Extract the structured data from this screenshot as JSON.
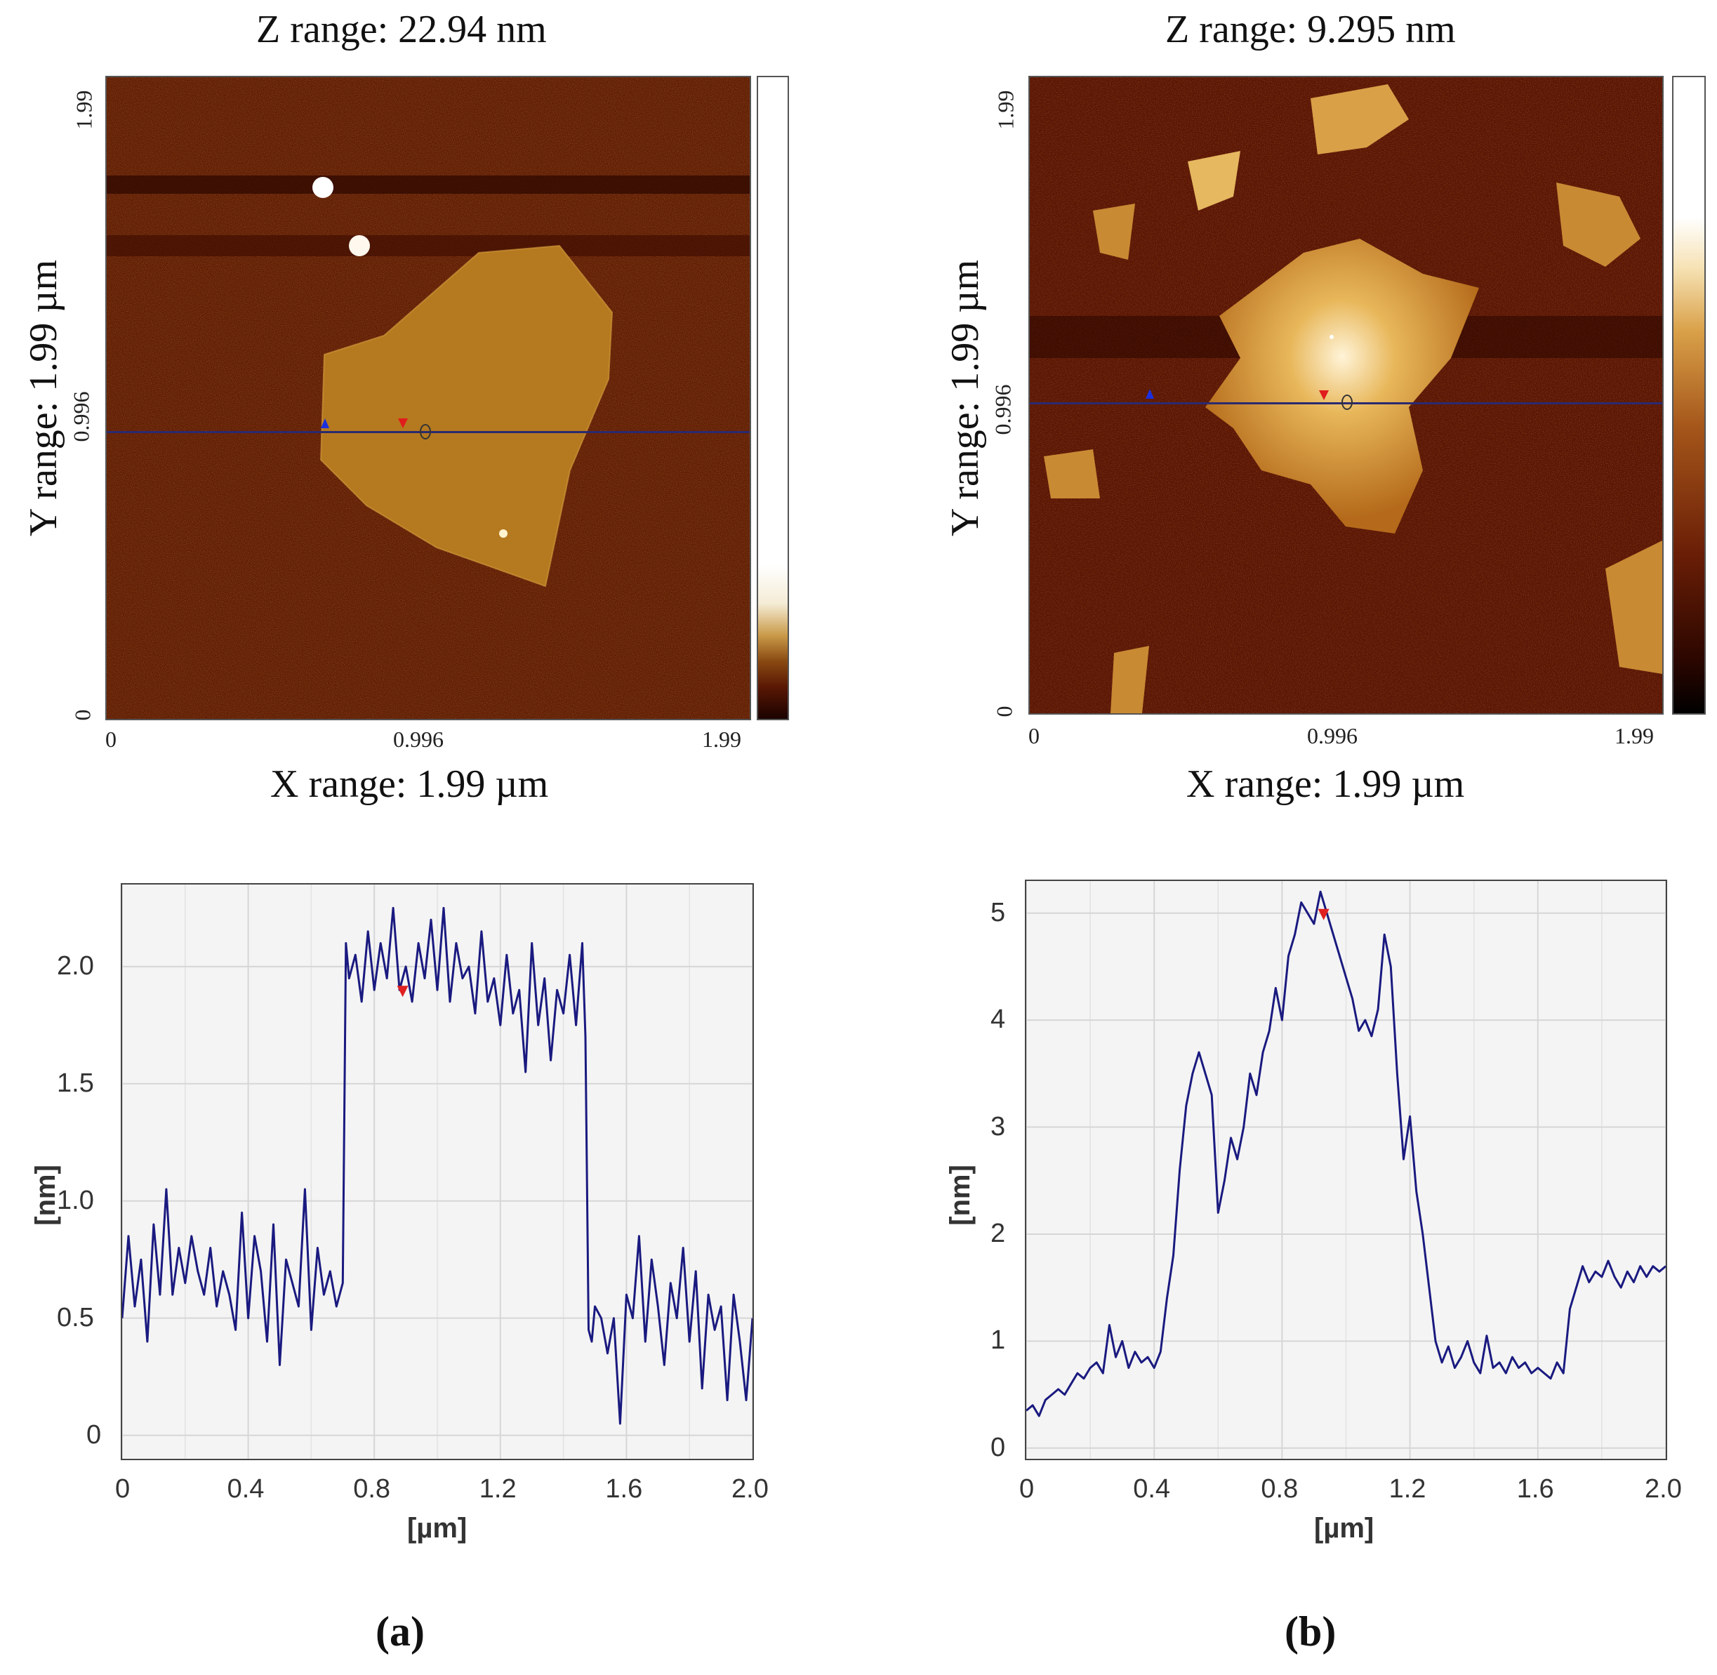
{
  "left": {
    "z_range": "Z range: 22.94 nm",
    "x_range": "X range: 1.99 µm",
    "y_range": "Y range: 1.99 µm",
    "x_ticks": [
      "0",
      "0.996",
      "1.99"
    ],
    "y_ticks": [
      "0",
      "0.996",
      "1.99"
    ],
    "panel_label": "(a)"
  },
  "right": {
    "z_range": "Z range: 9.295 nm",
    "x_range": "X range: 1.99 µm",
    "y_range": "Y range: 1.99 µm",
    "x_ticks": [
      "0",
      "0.996",
      "1.99"
    ],
    "y_ticks": [
      "0",
      "0.996",
      "1.99"
    ],
    "panel_label": "(b)"
  },
  "colors": {
    "map_dark": "#3a0a00",
    "map_mid": "#7a2a06",
    "map_flake": "#c58a2a",
    "line": "#1a1a80",
    "scan_line": "#2a2a70"
  },
  "chart_data": [
    {
      "type": "line",
      "panel": "a",
      "xlabel": "[µm]",
      "ylabel": "[nm]",
      "xlim": [
        0,
        2.0
      ],
      "ylim": [
        -0.1,
        2.35
      ],
      "xticks": [
        "0",
        "0.4",
        "0.8",
        "1.2",
        "1.6",
        "2.0"
      ],
      "yticks": [
        "0",
        "0.5",
        "1.0",
        "1.5",
        "2.0"
      ],
      "x": [
        0.0,
        0.02,
        0.04,
        0.06,
        0.08,
        0.1,
        0.12,
        0.14,
        0.16,
        0.18,
        0.2,
        0.22,
        0.24,
        0.26,
        0.28,
        0.3,
        0.32,
        0.34,
        0.36,
        0.38,
        0.4,
        0.42,
        0.44,
        0.46,
        0.48,
        0.5,
        0.52,
        0.54,
        0.56,
        0.58,
        0.6,
        0.62,
        0.64,
        0.66,
        0.68,
        0.7,
        0.71,
        0.72,
        0.74,
        0.76,
        0.78,
        0.8,
        0.82,
        0.84,
        0.86,
        0.88,
        0.9,
        0.92,
        0.94,
        0.96,
        0.98,
        1.0,
        1.02,
        1.04,
        1.06,
        1.08,
        1.1,
        1.12,
        1.14,
        1.16,
        1.18,
        1.2,
        1.22,
        1.24,
        1.26,
        1.28,
        1.3,
        1.32,
        1.34,
        1.36,
        1.38,
        1.4,
        1.42,
        1.44,
        1.46,
        1.47,
        1.48,
        1.49,
        1.5,
        1.52,
        1.54,
        1.56,
        1.58,
        1.6,
        1.62,
        1.64,
        1.66,
        1.68,
        1.7,
        1.72,
        1.74,
        1.76,
        1.78,
        1.8,
        1.82,
        1.84,
        1.86,
        1.88,
        1.9,
        1.92,
        1.94,
        1.96,
        1.98,
        2.0
      ],
      "values": [
        0.5,
        0.85,
        0.55,
        0.75,
        0.4,
        0.9,
        0.6,
        1.05,
        0.6,
        0.8,
        0.65,
        0.85,
        0.7,
        0.6,
        0.8,
        0.55,
        0.7,
        0.6,
        0.45,
        0.95,
        0.5,
        0.85,
        0.7,
        0.4,
        0.9,
        0.3,
        0.75,
        0.65,
        0.55,
        1.05,
        0.45,
        0.8,
        0.6,
        0.7,
        0.55,
        0.65,
        2.1,
        1.95,
        2.05,
        1.85,
        2.15,
        1.9,
        2.1,
        1.95,
        2.25,
        1.9,
        2.0,
        1.85,
        2.1,
        1.95,
        2.2,
        1.9,
        2.25,
        1.85,
        2.1,
        1.95,
        2.0,
        1.8,
        2.15,
        1.85,
        1.95,
        1.75,
        2.05,
        1.8,
        1.9,
        1.55,
        2.1,
        1.75,
        1.95,
        1.6,
        1.9,
        1.8,
        2.05,
        1.75,
        2.1,
        1.7,
        0.45,
        0.4,
        0.55,
        0.5,
        0.35,
        0.5,
        0.05,
        0.6,
        0.5,
        0.85,
        0.4,
        0.75,
        0.55,
        0.3,
        0.65,
        0.5,
        0.8,
        0.4,
        0.7,
        0.2,
        0.6,
        0.45,
        0.55,
        0.15,
        0.6,
        0.4,
        0.15,
        0.5
      ],
      "cursor_x": 0.89
    },
    {
      "type": "line",
      "panel": "b",
      "xlabel": "[µm]",
      "ylabel": "[nm]",
      "xlim": [
        0,
        2.0
      ],
      "ylim": [
        -0.1,
        5.3
      ],
      "xticks": [
        "0",
        "0.4",
        "0.8",
        "1.2",
        "1.6",
        "2.0"
      ],
      "yticks": [
        "0",
        "1",
        "2",
        "3",
        "4",
        "5"
      ],
      "x": [
        0.0,
        0.02,
        0.04,
        0.06,
        0.08,
        0.1,
        0.12,
        0.14,
        0.16,
        0.18,
        0.2,
        0.22,
        0.24,
        0.26,
        0.28,
        0.3,
        0.32,
        0.34,
        0.36,
        0.38,
        0.4,
        0.42,
        0.44,
        0.46,
        0.48,
        0.5,
        0.52,
        0.54,
        0.56,
        0.58,
        0.6,
        0.62,
        0.64,
        0.66,
        0.68,
        0.7,
        0.72,
        0.74,
        0.76,
        0.78,
        0.8,
        0.82,
        0.84,
        0.86,
        0.88,
        0.9,
        0.92,
        0.94,
        0.96,
        0.98,
        1.0,
        1.02,
        1.04,
        1.06,
        1.08,
        1.1,
        1.12,
        1.14,
        1.16,
        1.18,
        1.2,
        1.22,
        1.24,
        1.26,
        1.28,
        1.3,
        1.32,
        1.34,
        1.36,
        1.38,
        1.4,
        1.42,
        1.44,
        1.46,
        1.48,
        1.5,
        1.52,
        1.54,
        1.56,
        1.58,
        1.6,
        1.62,
        1.64,
        1.66,
        1.68,
        1.7,
        1.72,
        1.74,
        1.76,
        1.78,
        1.8,
        1.82,
        1.84,
        1.86,
        1.88,
        1.9,
        1.92,
        1.94,
        1.96,
        1.98,
        2.0
      ],
      "values": [
        0.35,
        0.4,
        0.3,
        0.45,
        0.5,
        0.55,
        0.5,
        0.6,
        0.7,
        0.65,
        0.75,
        0.8,
        0.7,
        1.15,
        0.85,
        1.0,
        0.75,
        0.9,
        0.8,
        0.85,
        0.75,
        0.9,
        1.4,
        1.8,
        2.6,
        3.2,
        3.5,
        3.7,
        3.5,
        3.3,
        2.2,
        2.5,
        2.9,
        2.7,
        3.0,
        3.5,
        3.3,
        3.7,
        3.9,
        4.3,
        4.0,
        4.6,
        4.8,
        5.1,
        5.0,
        4.9,
        5.2,
        5.0,
        4.8,
        4.6,
        4.4,
        4.2,
        3.9,
        4.0,
        3.85,
        4.1,
        4.8,
        4.5,
        3.5,
        2.7,
        3.1,
        2.4,
        2.0,
        1.5,
        1.0,
        0.8,
        0.95,
        0.75,
        0.85,
        1.0,
        0.8,
        0.7,
        1.05,
        0.75,
        0.8,
        0.7,
        0.85,
        0.75,
        0.8,
        0.7,
        0.75,
        0.7,
        0.65,
        0.8,
        0.7,
        1.3,
        1.5,
        1.7,
        1.55,
        1.65,
        1.6,
        1.75,
        1.6,
        1.5,
        1.65,
        1.55,
        1.7,
        1.6,
        1.7,
        1.65,
        1.7
      ],
      "cursor_x": 0.93
    }
  ]
}
